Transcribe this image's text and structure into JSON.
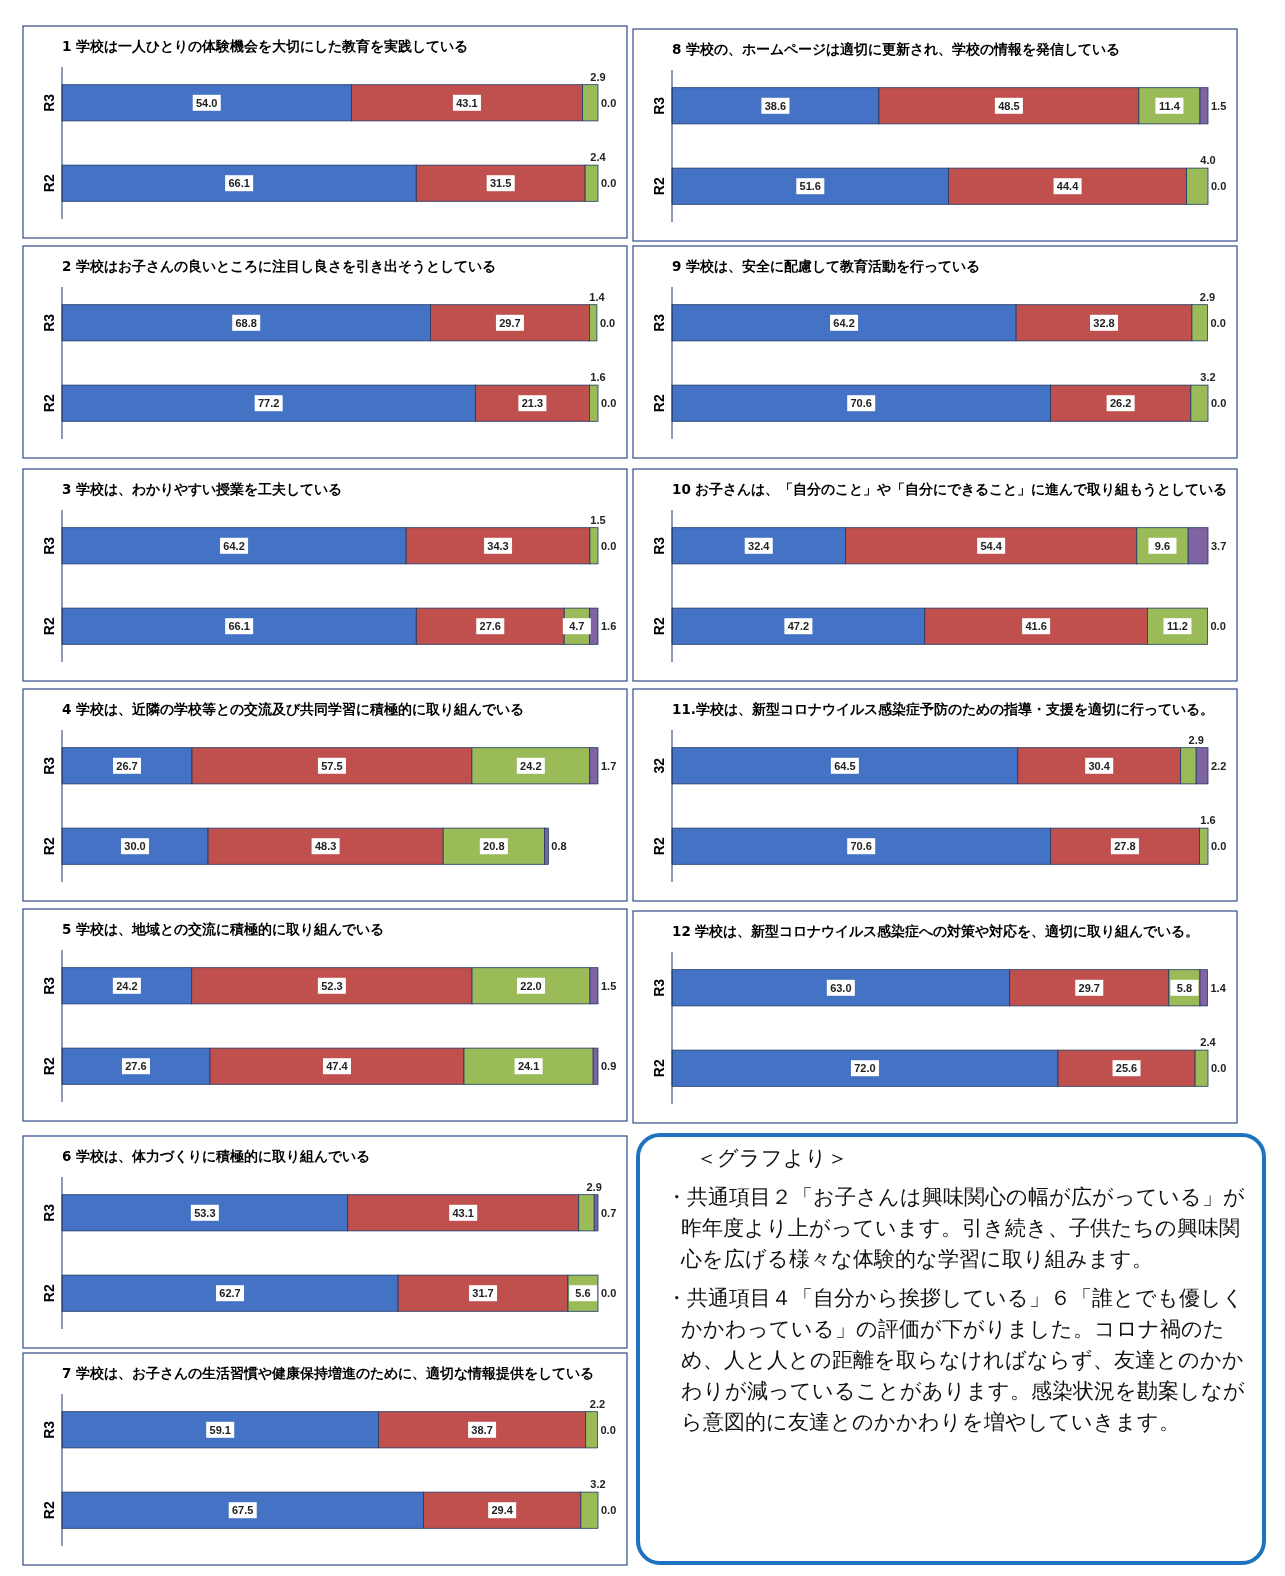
{
  "chart_data": [
    {
      "type": "bar",
      "orientation": "horizontal",
      "stacked": true,
      "title": "1  学校は一人ひとりの体験機会を大切にした教育を実践している",
      "categories": [
        "R3",
        "R2"
      ],
      "series": [
        {
          "color": "#4472c4",
          "values": [
            54.0,
            66.1
          ],
          "value_labels": [
            "54.0",
            "66.1"
          ]
        },
        {
          "color": "#c0504d",
          "values": [
            43.1,
            31.5
          ],
          "value_labels": [
            "43.1",
            "31.5"
          ]
        },
        {
          "color": "#9bbb59",
          "values": [
            2.9,
            2.4
          ],
          "value_labels": [
            "2.9",
            "2.4"
          ]
        },
        {
          "color": "#8064a2",
          "values": [
            0.0,
            0.0
          ],
          "value_labels": [
            "0.0",
            "0.0"
          ]
        }
      ]
    },
    {
      "type": "bar",
      "orientation": "horizontal",
      "stacked": true,
      "title": "2  学校はお子さんの良いところに注目し良さを引き出そうとしている",
      "categories": [
        "R3",
        "R2"
      ],
      "series": [
        {
          "color": "#4472c4",
          "values": [
            68.8,
            77.2
          ],
          "value_labels": [
            "68.8",
            "77.2"
          ]
        },
        {
          "color": "#c0504d",
          "values": [
            29.7,
            21.3
          ],
          "value_labels": [
            "29.7",
            "21.3"
          ]
        },
        {
          "color": "#9bbb59",
          "values": [
            1.4,
            1.6
          ],
          "value_labels": [
            "1.4",
            "1.6"
          ]
        },
        {
          "color": "#8064a2",
          "values": [
            0.0,
            0.0
          ],
          "value_labels": [
            "0.0",
            "0.0"
          ]
        }
      ]
    },
    {
      "type": "bar",
      "orientation": "horizontal",
      "stacked": true,
      "title": "3  学校は、わかりやすい授業を工夫している",
      "categories": [
        "R3",
        "R2"
      ],
      "series": [
        {
          "color": "#4472c4",
          "values": [
            64.2,
            66.1
          ],
          "value_labels": [
            "64.2",
            "66.1"
          ]
        },
        {
          "color": "#c0504d",
          "values": [
            34.3,
            27.6
          ],
          "value_labels": [
            "34.3",
            "27.6"
          ]
        },
        {
          "color": "#9bbb59",
          "values": [
            1.5,
            4.7
          ],
          "value_labels": [
            "1.5",
            "4.7"
          ]
        },
        {
          "color": "#8064a2",
          "values": [
            0.0,
            1.6
          ],
          "value_labels": [
            "0.0",
            "1.6"
          ]
        }
      ]
    },
    {
      "type": "bar",
      "orientation": "horizontal",
      "stacked": true,
      "title": "4  学校は、近隣の学校等との交流及び共同学習に積極的に取り組んでいる",
      "categories": [
        "R3",
        "R2"
      ],
      "series": [
        {
          "color": "#4472c4",
          "values": [
            26.7,
            30.0
          ],
          "value_labels": [
            "26.7",
            "30.0"
          ]
        },
        {
          "color": "#c0504d",
          "values": [
            57.5,
            48.3
          ],
          "value_labels": [
            "57.5",
            "48.3"
          ]
        },
        {
          "color": "#9bbb59",
          "values": [
            24.2,
            20.8
          ],
          "value_labels": [
            "24.2",
            "20.8"
          ]
        },
        {
          "color": "#8064a2",
          "values": [
            1.7,
            0.8
          ],
          "value_labels": [
            "1.7",
            "0.8"
          ]
        }
      ]
    },
    {
      "type": "bar",
      "orientation": "horizontal",
      "stacked": true,
      "title": "5  学校は、地域との交流に積極的に取り組んでいる",
      "categories": [
        "R3",
        "R2"
      ],
      "series": [
        {
          "color": "#4472c4",
          "values": [
            24.2,
            27.6
          ],
          "value_labels": [
            "24.2",
            "27.6"
          ]
        },
        {
          "color": "#c0504d",
          "values": [
            52.3,
            47.4
          ],
          "value_labels": [
            "52.3",
            "47.4"
          ]
        },
        {
          "color": "#9bbb59",
          "values": [
            22.0,
            24.1
          ],
          "value_labels": [
            "22.0",
            "24.1"
          ]
        },
        {
          "color": "#8064a2",
          "values": [
            1.5,
            0.9
          ],
          "value_labels": [
            "1.5",
            "0.9"
          ]
        }
      ]
    },
    {
      "type": "bar",
      "orientation": "horizontal",
      "stacked": true,
      "title": "6  学校は、体力づくりに積極的に取り組んでいる",
      "categories": [
        "R3",
        "R2"
      ],
      "series": [
        {
          "color": "#4472c4",
          "values": [
            53.3,
            62.7
          ],
          "value_labels": [
            "53.3",
            "62.7"
          ]
        },
        {
          "color": "#c0504d",
          "values": [
            43.1,
            31.7
          ],
          "value_labels": [
            "43.1",
            "31.7"
          ]
        },
        {
          "color": "#9bbb59",
          "values": [
            2.9,
            5.6
          ],
          "value_labels": [
            "2.9",
            "5.6"
          ]
        },
        {
          "color": "#8064a2",
          "values": [
            0.7,
            0.0
          ],
          "value_labels": [
            "0.7",
            "0.0"
          ]
        }
      ]
    },
    {
      "type": "bar",
      "orientation": "horizontal",
      "stacked": true,
      "title": "7  学校は、お子さんの生活習慣や健康保持増進のために、適切な情報提供をしている",
      "categories": [
        "R3",
        "R2"
      ],
      "series": [
        {
          "color": "#4472c4",
          "values": [
            59.1,
            67.5
          ],
          "value_labels": [
            "59.1",
            "67.5"
          ]
        },
        {
          "color": "#c0504d",
          "values": [
            38.7,
            29.4
          ],
          "value_labels": [
            "38.7",
            "29.4"
          ]
        },
        {
          "color": "#9bbb59",
          "values": [
            2.2,
            3.2
          ],
          "value_labels": [
            "2.2",
            "3.2"
          ]
        },
        {
          "color": "#8064a2",
          "values": [
            0.0,
            0.0
          ],
          "value_labels": [
            "0.0",
            "0.0"
          ]
        }
      ]
    },
    {
      "type": "bar",
      "orientation": "horizontal",
      "stacked": true,
      "title": "8  学校の、ホームページは適切に更新され、学校の情報を発信している",
      "categories": [
        "R3",
        "R2"
      ],
      "series": [
        {
          "color": "#4472c4",
          "values": [
            38.6,
            51.6
          ],
          "value_labels": [
            "38.6",
            "51.6"
          ]
        },
        {
          "color": "#c0504d",
          "values": [
            48.5,
            44.4
          ],
          "value_labels": [
            "48.5",
            "44.4"
          ]
        },
        {
          "color": "#9bbb59",
          "values": [
            11.4,
            4.0
          ],
          "value_labels": [
            "11.4",
            "4.0"
          ]
        },
        {
          "color": "#8064a2",
          "values": [
            1.5,
            0.0
          ],
          "value_labels": [
            "1.5",
            "0.0"
          ]
        }
      ]
    },
    {
      "type": "bar",
      "orientation": "horizontal",
      "stacked": true,
      "title": "9  学校は、安全に配慮して教育活動を行っている",
      "categories": [
        "R3",
        "R2"
      ],
      "series": [
        {
          "color": "#4472c4",
          "values": [
            64.2,
            70.6
          ],
          "value_labels": [
            "64.2",
            "70.6"
          ]
        },
        {
          "color": "#c0504d",
          "values": [
            32.8,
            26.2
          ],
          "value_labels": [
            "32.8",
            "26.2"
          ]
        },
        {
          "color": "#9bbb59",
          "values": [
            2.9,
            3.2
          ],
          "value_labels": [
            "2.9",
            "3.2"
          ]
        },
        {
          "color": "#8064a2",
          "values": [
            0.0,
            0.0
          ],
          "value_labels": [
            "0.0",
            "0.0"
          ]
        }
      ]
    },
    {
      "type": "bar",
      "orientation": "horizontal",
      "stacked": true,
      "title": "10  お子さんは、「自分のこと」や「自分にできること」に進んで取り組もうとしている",
      "categories": [
        "R3",
        "R2"
      ],
      "series": [
        {
          "color": "#4472c4",
          "values": [
            32.4,
            47.2
          ],
          "value_labels": [
            "32.4",
            "47.2"
          ]
        },
        {
          "color": "#c0504d",
          "values": [
            54.4,
            41.6
          ],
          "value_labels": [
            "54.4",
            "41.6"
          ]
        },
        {
          "color": "#9bbb59",
          "values": [
            9.6,
            11.2
          ],
          "value_labels": [
            "9.6",
            "11.2"
          ]
        },
        {
          "color": "#8064a2",
          "values": [
            3.7,
            0.0
          ],
          "value_labels": [
            "3.7",
            "0.0"
          ]
        }
      ]
    },
    {
      "type": "bar",
      "orientation": "horizontal",
      "stacked": true,
      "title": "11.学校は、新型コロナウイルス感染症予防のための指導・支援を適切に行っている。",
      "categories": [
        "32",
        "R2"
      ],
      "series": [
        {
          "color": "#4472c4",
          "values": [
            64.5,
            70.6
          ],
          "value_labels": [
            "64.5",
            "70.6"
          ]
        },
        {
          "color": "#c0504d",
          "values": [
            30.4,
            27.8
          ],
          "value_labels": [
            "30.4",
            "27.8"
          ]
        },
        {
          "color": "#9bbb59",
          "values": [
            2.9,
            1.6
          ],
          "value_labels": [
            "2.9",
            "1.6"
          ]
        },
        {
          "color": "#8064a2",
          "values": [
            2.2,
            0.0
          ],
          "value_labels": [
            "2.2",
            "0.0"
          ]
        }
      ]
    },
    {
      "type": "bar",
      "orientation": "horizontal",
      "stacked": true,
      "title": "12  学校は、新型コロナウイルス感染症への対策や対応を、適切に取り組んでいる。",
      "categories": [
        "R3",
        "R2"
      ],
      "series": [
        {
          "color": "#4472c4",
          "values": [
            63.0,
            72.0
          ],
          "value_labels": [
            "63.0",
            "72.0"
          ]
        },
        {
          "color": "#c0504d",
          "values": [
            29.7,
            25.6
          ],
          "value_labels": [
            "29.7",
            "25.6"
          ]
        },
        {
          "color": "#9bbb59",
          "values": [
            5.8,
            2.4
          ],
          "value_labels": [
            "5.8",
            "2.4"
          ]
        },
        {
          "color": "#8064a2",
          "values": [
            1.4,
            0.0
          ],
          "value_labels": [
            "1.4",
            "0.0"
          ]
        }
      ]
    },
    {
      "type": "other",
      "title": "＜グラフより＞",
      "annotations": [
        "・共通項目２「お子さんは興味関心の幅が広がっている」が昨年度より上がっています。引き続き、子供たちの興味関心を広げる様々な体験的な学習に取り組みます。",
        "・共通項目４「自分から挨拶している」６「誰とでも優しくかかわっている」の評価が下がりました。コロナ禍のため、人と人との距離を取らなければならず、友達とのかかわりが減っていることがあります。感染状況を勘案しながら意図的に友達とのかかわりを増やしていきます。"
      ]
    }
  ]
}
